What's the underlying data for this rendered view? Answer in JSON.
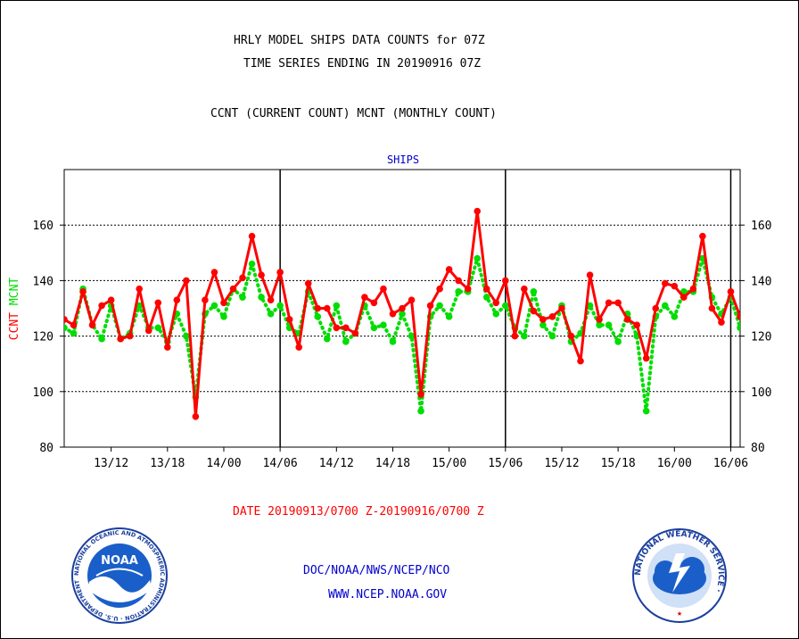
{
  "header": {
    "line1": "HRLY MODEL SHIPS DATA COUNTS for 07Z",
    "line2": "TIME SERIES ENDING IN 20190916 07Z",
    "line3": "CCNT (CURRENT COUNT) MCNT (MONTHLY COUNT)"
  },
  "footer": {
    "date_range": "DATE 20190913/0700 Z-20190916/0700 Z",
    "org": "DOC/NOAA/NWS/NCEP/NCO",
    "url": "WWW.NCEP.NOAA.GOV"
  },
  "logos": {
    "noaa_text": "NOAA",
    "noaa_ring": "NATIONAL OCEANIC AND ATMOSPHERIC ADMINISTRATION · U.S. DEPARTMENT OF COMMERCE ·",
    "nws_ring": "NATIONAL WEATHER SERVICE ·"
  },
  "colors": {
    "ccnt": "#ff0000",
    "mcnt": "#00dd00",
    "title": "#0000cc",
    "footer_red": "#ff0000",
    "footer_blue": "#0000cc"
  },
  "chart_data": {
    "type": "line",
    "title": "SHIPS",
    "ylabel_left": [
      "CCNT",
      "MCNT"
    ],
    "ylim": [
      80,
      180
    ],
    "yticks": [
      80,
      100,
      120,
      140,
      160
    ],
    "x_start_hour": 7,
    "x_end_hour": 79,
    "xticks": [
      {
        "h": 12,
        "label": "13/12"
      },
      {
        "h": 18,
        "label": "13/18"
      },
      {
        "h": 24,
        "label": "14/00"
      },
      {
        "h": 30,
        "label": "14/06"
      },
      {
        "h": 36,
        "label": "14/12"
      },
      {
        "h": 42,
        "label": "14/18"
      },
      {
        "h": 48,
        "label": "15/00"
      },
      {
        "h": 54,
        "label": "15/06"
      },
      {
        "h": 60,
        "label": "15/12"
      },
      {
        "h": 66,
        "label": "15/18"
      },
      {
        "h": 72,
        "label": "16/00"
      },
      {
        "h": 78,
        "label": "16/06"
      }
    ],
    "vlines": [
      30,
      54,
      78
    ],
    "grid": "horizontal dotted",
    "series": [
      {
        "name": "CCNT",
        "color": "#ff0000",
        "style": "solid",
        "values": [
          126,
          124,
          136,
          124,
          131,
          133,
          119,
          120,
          137,
          122,
          132,
          116,
          133,
          140,
          91,
          133,
          143,
          132,
          137,
          141,
          156,
          142,
          133,
          143,
          126,
          116,
          139,
          130,
          130,
          123,
          123,
          121,
          134,
          132,
          137,
          128,
          130,
          133,
          99,
          131,
          137,
          144,
          140,
          137,
          165,
          137,
          132,
          140,
          120,
          137,
          129,
          126,
          127,
          130,
          120,
          111,
          142,
          126,
          132,
          132,
          126,
          124,
          112,
          130,
          139,
          138,
          134,
          137,
          156,
          130,
          125,
          136,
          127
        ]
      },
      {
        "name": "MCNT",
        "color": "#00dd00",
        "style": "dotted",
        "values": [
          123,
          121,
          137,
          124,
          119,
          131,
          119,
          121,
          131,
          123,
          123,
          118,
          128,
          120,
          98,
          128,
          131,
          127,
          137,
          134,
          146,
          134,
          128,
          131,
          123,
          121,
          136,
          127,
          119,
          131,
          118,
          121,
          131,
          123,
          124,
          118,
          128,
          120,
          93,
          127,
          131,
          127,
          136,
          136,
          148,
          134,
          128,
          131,
          123,
          120,
          136,
          124,
          120,
          131,
          118,
          121,
          131,
          124,
          124,
          118,
          128,
          120,
          93,
          127,
          131,
          127,
          136,
          136,
          148,
          134,
          128,
          134,
          123
        ]
      }
    ]
  }
}
